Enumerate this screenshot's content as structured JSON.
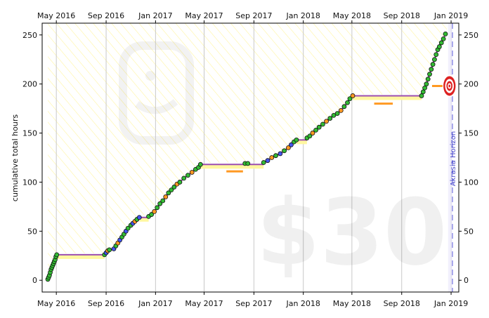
{
  "chart_data": {
    "type": "line",
    "title": "",
    "xlabel": "",
    "ylabel": "cumulative total hours",
    "ylim": [
      -12,
      262
    ],
    "xlim": [
      "2016-03-27",
      "2019-01-20"
    ],
    "grid": "vertical",
    "x_ticks": [
      {
        "date": "2016-05-01",
        "label": "May 2016"
      },
      {
        "date": "2016-09-01",
        "label": "Sep 2016"
      },
      {
        "date": "2017-01-01",
        "label": "Jan 2017"
      },
      {
        "date": "2017-05-01",
        "label": "May 2017"
      },
      {
        "date": "2017-09-01",
        "label": "Sep 2017"
      },
      {
        "date": "2018-01-01",
        "label": "Jan 2018"
      },
      {
        "date": "2018-05-01",
        "label": "May 2018"
      },
      {
        "date": "2018-09-01",
        "label": "Sep 2018"
      },
      {
        "date": "2019-01-01",
        "label": "Jan 2019"
      }
    ],
    "y_ticks": [
      0,
      50,
      100,
      150,
      200,
      250
    ],
    "watermark_stake": "$30",
    "akrasia_horizon": {
      "date": "2019-01-04",
      "label": "Akrasia Horizon"
    },
    "goal_target": {
      "date": "2018-12-28",
      "value": 198
    },
    "colors": {
      "road_line": "#9c4fb0",
      "road_band": "#fff7a0",
      "road_stripes": "#fff4a0",
      "point_ok": "#33bb33",
      "point_warn": "#4455ee",
      "point_orange": "#ff9922",
      "horizon_line": "#6666dd",
      "target_red": "#dd2222",
      "grid": "#c8c8c8"
    },
    "series": [
      {
        "segments": [
          {
            "points": [
              [
                "2016-04-10",
                1
              ],
              [
                "2016-04-12",
                3
              ],
              [
                "2016-04-14",
                5
              ],
              [
                "2016-04-16",
                8
              ],
              [
                "2016-04-18",
                11
              ],
              [
                "2016-04-20",
                13
              ],
              [
                "2016-04-22",
                15
              ],
              [
                "2016-04-24",
                17
              ],
              [
                "2016-04-26",
                19
              ],
              [
                "2016-04-28",
                21
              ],
              [
                "2016-04-30",
                24
              ],
              [
                "2016-05-02",
                26
              ]
            ]
          },
          {
            "points": [
              [
                "2016-08-28",
                26
              ],
              [
                "2016-09-01",
                28
              ],
              [
                "2016-09-05",
                30
              ],
              [
                "2016-09-09",
                31
              ],
              [
                "2016-09-20",
                32
              ],
              [
                "2016-09-25",
                35
              ],
              [
                "2016-09-30",
                38
              ],
              [
                "2016-10-05",
                41
              ],
              [
                "2016-10-10",
                44
              ],
              [
                "2016-10-15",
                47
              ],
              [
                "2016-10-20",
                50
              ],
              [
                "2016-10-25",
                53
              ],
              [
                "2016-11-01",
                56
              ],
              [
                "2016-11-06",
                58
              ],
              [
                "2016-11-11",
                60
              ],
              [
                "2016-11-16",
                62
              ],
              [
                "2016-11-22",
                64
              ]
            ]
          },
          {
            "points": [
              [
                "2016-12-15",
                65
              ],
              [
                "2016-12-22",
                67
              ],
              [
                "2016-12-29",
                70
              ],
              [
                "2017-01-05",
                74
              ],
              [
                "2017-01-12",
                78
              ],
              [
                "2017-01-19",
                81
              ],
              [
                "2017-01-26",
                85
              ],
              [
                "2017-02-02",
                89
              ],
              [
                "2017-02-09",
                92
              ],
              [
                "2017-02-16",
                95
              ],
              [
                "2017-02-23",
                98
              ],
              [
                "2017-03-02",
                100
              ],
              [
                "2017-03-12",
                104
              ],
              [
                "2017-03-22",
                107
              ],
              [
                "2017-04-01",
                110
              ],
              [
                "2017-04-10",
                113
              ],
              [
                "2017-04-17",
                115
              ],
              [
                "2017-04-22",
                118
              ]
            ]
          },
          {
            "points": [
              [
                "2017-08-10",
                119
              ],
              [
                "2017-08-17",
                119
              ]
            ]
          },
          {
            "points": [
              [
                "2017-09-25",
                120
              ],
              [
                "2017-10-05",
                122
              ],
              [
                "2017-10-15",
                125
              ],
              [
                "2017-10-25",
                127
              ],
              [
                "2017-11-05",
                129
              ],
              [
                "2017-11-15",
                132
              ],
              [
                "2017-11-25",
                135
              ],
              [
                "2017-12-02",
                138
              ],
              [
                "2017-12-09",
                141
              ],
              [
                "2017-12-15",
                143
              ]
            ]
          },
          {
            "points": [
              [
                "2018-01-10",
                145
              ],
              [
                "2018-01-17",
                147
              ],
              [
                "2018-01-24",
                150
              ],
              [
                "2018-02-01",
                153
              ],
              [
                "2018-02-09",
                156
              ],
              [
                "2018-02-18",
                159
              ],
              [
                "2018-02-27",
                162
              ],
              [
                "2018-03-08",
                165
              ],
              [
                "2018-03-17",
                168
              ],
              [
                "2018-03-26",
                170
              ],
              [
                "2018-04-04",
                173
              ],
              [
                "2018-04-12",
                177
              ],
              [
                "2018-04-20",
                181
              ],
              [
                "2018-04-26",
                185
              ],
              [
                "2018-05-03",
                188
              ]
            ]
          },
          {
            "points": [
              [
                "2018-10-20",
                188
              ],
              [
                "2018-10-24",
                192
              ],
              [
                "2018-10-28",
                196
              ],
              [
                "2018-11-01",
                200
              ],
              [
                "2018-11-05",
                205
              ],
              [
                "2018-11-09",
                210
              ],
              [
                "2018-11-13",
                215
              ],
              [
                "2018-11-17",
                220
              ],
              [
                "2018-11-21",
                225
              ],
              [
                "2018-11-25",
                230
              ],
              [
                "2018-11-29",
                235
              ],
              [
                "2018-12-03",
                238
              ],
              [
                "2018-12-08",
                242
              ],
              [
                "2018-12-13",
                246
              ],
              [
                "2018-12-18",
                251
              ]
            ]
          }
        ]
      }
    ],
    "road_flats": [
      {
        "from": "2016-05-02",
        "to": "2016-08-28",
        "value": 26
      },
      {
        "from": "2016-11-22",
        "to": "2016-12-15",
        "value": 64
      },
      {
        "from": "2017-04-22",
        "to": "2017-09-25",
        "value": 118
      },
      {
        "from": "2017-12-15",
        "to": "2018-01-10",
        "value": 143
      },
      {
        "from": "2018-05-03",
        "to": "2018-10-20",
        "value": 188
      }
    ],
    "orange_markers": [
      {
        "from": "2017-06-25",
        "to": "2017-08-05",
        "value": 111
      },
      {
        "from": "2018-06-25",
        "to": "2018-08-10",
        "value": 180
      },
      {
        "from": "2018-11-15",
        "to": "2019-01-10",
        "value": 198
      }
    ]
  }
}
